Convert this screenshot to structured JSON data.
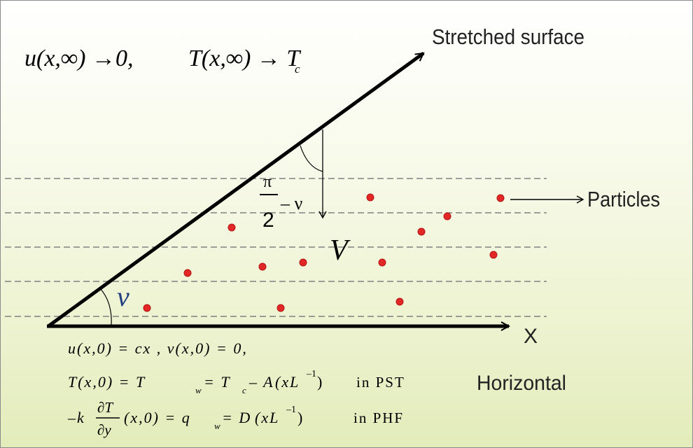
{
  "labels": {
    "stretched_surface": "Stretched surface",
    "particles": "Particles",
    "horizontal": "Horizontal",
    "x_axis": "X",
    "angle_nu": "ν",
    "angle_pi": "π",
    "angle_two": "2",
    "angle_minus_nu": "– ν",
    "gravity_v": "V"
  },
  "top_conditions": {
    "u_condition": "u(x,∞) →0,",
    "t_condition_main": "T(x,∞) → T",
    "t_condition_sub": "c"
  },
  "boundary_conditions": {
    "line1": "u(x,0)  =  cx ,  v(x,0)  =  0,",
    "line2": {
      "T_prefix": "T(x,0)  =  T",
      "w_sub": "w",
      "eq_Tc": " = T",
      "c_sub": "c",
      "rest": "– A",
      "paren": "(xL",
      "exp": "–1",
      "close": ")",
      "case": "in PST"
    },
    "line3": {
      "minus_k": "–k",
      "dT": "∂T",
      "dy": "∂y",
      "args": "(x,0) = q",
      "w_sub": "w",
      "eq_D": " = D",
      "paren": "(xL",
      "exp": "–1",
      "close": ")",
      "case": "in PHF"
    }
  },
  "colors": {
    "particle": "#e32626",
    "dashed_line": "#808080",
    "line": "#000000"
  }
}
